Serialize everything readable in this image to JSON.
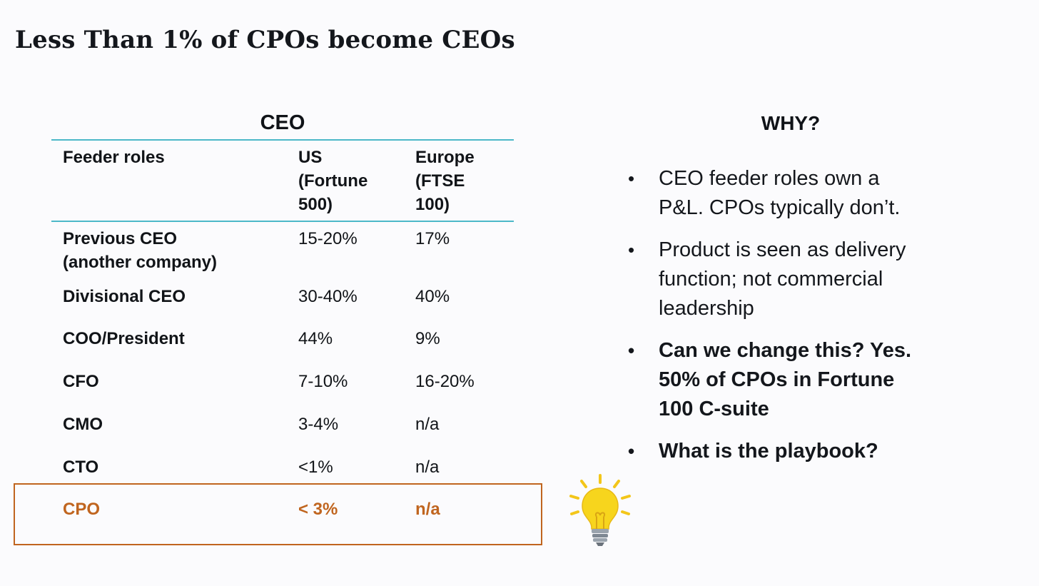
{
  "title": "Less Than 1% of  CPOs become CEOs",
  "table": {
    "caption": "CEO",
    "headers": {
      "role": "Feeder roles",
      "us": [
        "US",
        "(Fortune",
        "500)"
      ],
      "europe": [
        "Europe",
        "(FTSE",
        "100)"
      ]
    },
    "rows": [
      {
        "role": [
          "Previous CEO",
          "(another company)"
        ],
        "us": "15-20%",
        "europe": "17%"
      },
      {
        "role": [
          "Divisional CEO"
        ],
        "us": "30-40%",
        "europe": "40%"
      },
      {
        "role": [
          "COO/President"
        ],
        "us": "44%",
        "europe": "9%"
      },
      {
        "role": [
          "CFO"
        ],
        "us": "7-10%",
        "europe": "16-20%"
      },
      {
        "role": [
          "CMO"
        ],
        "us": "3-4%",
        "europe": "n/a"
      },
      {
        "role": [
          "CTO"
        ],
        "us": "<1%",
        "europe": "n/a"
      }
    ],
    "highlight_row": {
      "role": "CPO",
      "us": "< 3%",
      "europe": "n/a"
    }
  },
  "colors": {
    "accent_rule": "#4cb8c8",
    "highlight": "#c0651f",
    "bulb": "#f7d51d"
  },
  "why": {
    "heading": "WHY?",
    "bullets": [
      {
        "lines": [
          "CEO feeder roles own a",
          "P&L. CPOs typically don’t."
        ],
        "bold": false
      },
      {
        "lines": [
          "Product is seen as delivery",
          "function; not commercial",
          "leadership"
        ],
        "bold": false
      },
      {
        "lines": [
          "Can we change this?  Yes.",
          "50% of CPOs in Fortune",
          "100 C-suite"
        ],
        "bold": true
      },
      {
        "lines": [
          "What is the playbook?"
        ],
        "bold": true
      }
    ]
  },
  "icons": {
    "bullet": "•",
    "decor": "lightbulb-icon"
  }
}
